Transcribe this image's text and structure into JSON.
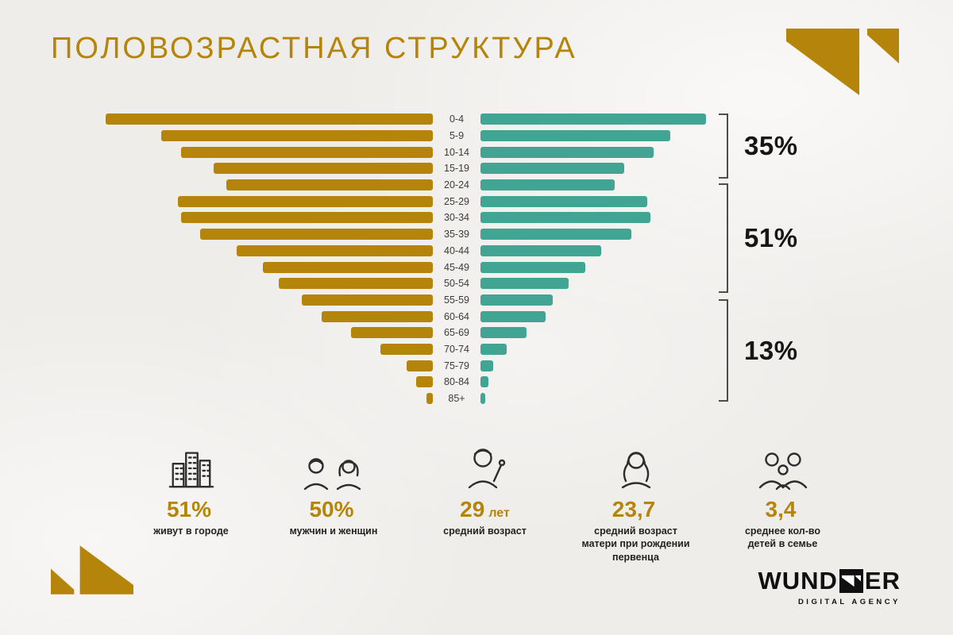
{
  "title": "ПОЛОВОЗРАСТНАЯ СТРУКТУРА",
  "chart_data": {
    "type": "bar",
    "subtype": "population-pyramid",
    "title": "ПОЛОВОЗРАСТНАЯ СТРУКТУРА",
    "units": "relative bar length, % of longest bar (no numeric axis shown)",
    "categories": [
      "0-4",
      "5-9",
      "10-14",
      "15-19",
      "20-24",
      "25-29",
      "30-34",
      "35-39",
      "40-44",
      "45-49",
      "50-54",
      "55-59",
      "60-64",
      "65-69",
      "70-74",
      "75-79",
      "80-84",
      "85+"
    ],
    "series": [
      {
        "name": "left (gold)",
        "color": "#b5850b",
        "values": [
          100,
          83,
          77,
          67,
          63,
          78,
          77,
          71,
          60,
          52,
          47,
          40,
          34,
          25,
          16,
          8,
          5,
          2
        ]
      },
      {
        "name": "right (teal)",
        "color": "#42a493",
        "values": [
          69,
          58,
          53,
          44,
          41,
          51,
          52,
          46,
          37,
          32,
          27,
          22,
          20,
          14,
          8,
          4,
          2.5,
          1.5
        ]
      }
    ],
    "brackets": [
      {
        "label": "35%",
        "from": "0-4",
        "to": "15-19"
      },
      {
        "label": "51%",
        "from": "20-24",
        "to": "50-54"
      },
      {
        "label": "13%",
        "from": "55-59",
        "to": "85+"
      }
    ],
    "legend_position": "none",
    "grid": false
  },
  "stats": {
    "items": [
      {
        "icon": "city-icon",
        "value": "51%",
        "suffix": "",
        "label": "живут в городе"
      },
      {
        "icon": "man-woman-icon",
        "value": "50%",
        "suffix": "",
        "label": "мужчин и женщин"
      },
      {
        "icon": "young-man-icon",
        "value": "29",
        "suffix": "лет",
        "label": "средний возраст"
      },
      {
        "icon": "mother-icon",
        "value": "23,7",
        "suffix": "",
        "label": "средний возраст\nматери при рождении\nпервенца"
      },
      {
        "icon": "family-icon",
        "value": "3,4",
        "suffix": "",
        "label": "среднее кол-во\nдетей в семье"
      }
    ]
  },
  "logo": {
    "text_left": "WUND",
    "text_right": "ER",
    "tagline": "DIGITAL AGENCY"
  },
  "colors": {
    "gold": "#b5850b",
    "teal": "#42a493",
    "text_dark": "#161616",
    "background": "#efedea"
  }
}
